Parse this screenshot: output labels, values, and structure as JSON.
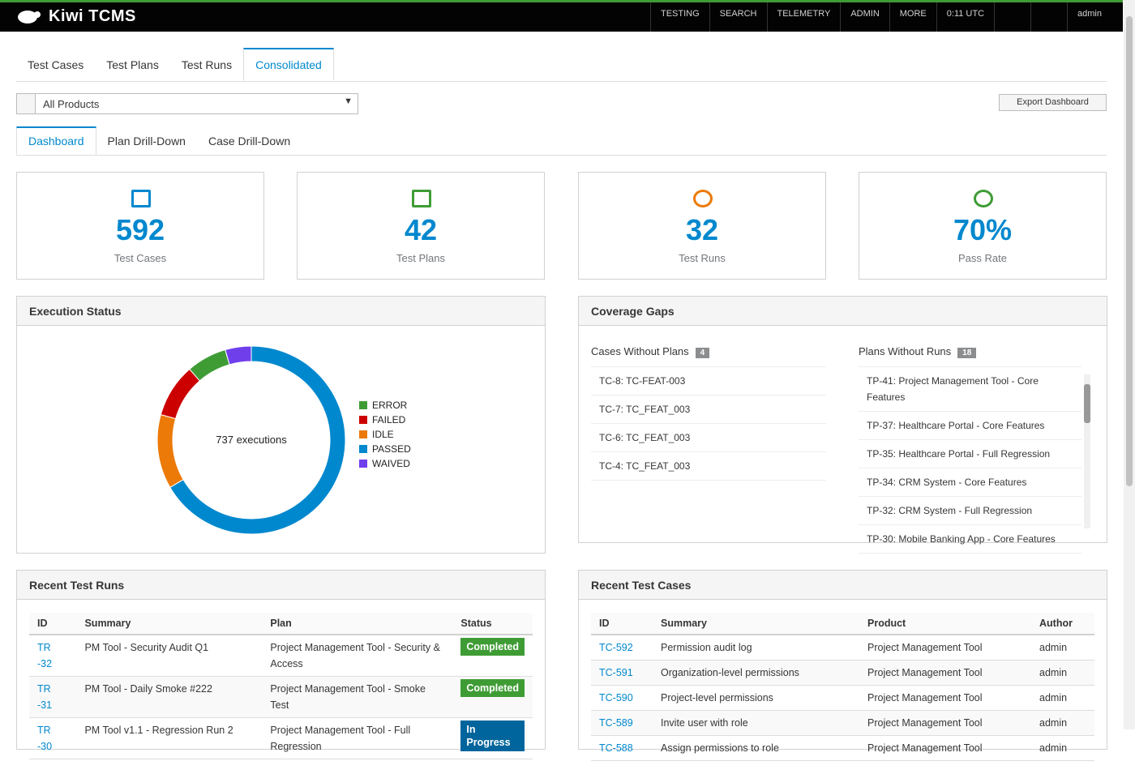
{
  "navbar": {
    "brand": "Kiwi TCMS",
    "menus": [
      "TESTING",
      "SEARCH",
      "TELEMETRY",
      "ADMIN",
      "MORE"
    ],
    "clock": "0:11 UTC",
    "user": "admin"
  },
  "tabs": [
    "Test Cases",
    "Test Plans",
    "Test Runs",
    "Consolidated"
  ],
  "filter": "All Products",
  "export": "Export Dashboard",
  "subtabs": [
    "Dashboard",
    "Plan Drill-Down",
    "Case Drill-Down"
  ],
  "stats": [
    {
      "value": "592",
      "label": "Test Cases",
      "color": "#0088ce"
    },
    {
      "value": "42",
      "label": "Test Plans",
      "color": "#3f9c35"
    },
    {
      "value": "32",
      "label": "Test Runs",
      "color": "#ec7a08"
    },
    {
      "value": "70%",
      "label": "Pass Rate",
      "color": "#3f9c35"
    }
  ],
  "chart_data": {
    "type": "pie",
    "title": "Execution Status",
    "center_label": "737 executions",
    "categories": [
      "ERROR",
      "FAILED",
      "IDLE",
      "PASSED",
      "WAIVED"
    ],
    "values": [
      51,
      68,
      94,
      491,
      33
    ],
    "colors": [
      "#3f9c35",
      "#cc0000",
      "#ec7a08",
      "#0088ce",
      "#703fec"
    ]
  },
  "coverage": {
    "title": "Coverage Gaps",
    "cases": {
      "title": "Cases Without Plans",
      "count": "4",
      "items": [
        "TC-8: TC-FEAT-003",
        "TC-7: TC_FEAT_003",
        "TC-6: TC_FEAT_003",
        "TC-4: TC_FEAT_003"
      ]
    },
    "plans": {
      "title": "Plans Without Runs",
      "count": "18",
      "items": [
        "TP-41: Project Management Tool - Core Features",
        "TP-37: Healthcare Portal - Core Features",
        "TP-35: Healthcare Portal - Full Regression",
        "TP-34: CRM System - Core Features",
        "TP-32: CRM System - Full Regression",
        "TP-30: Mobile Banking App - Core Features"
      ]
    }
  },
  "recent_runs": {
    "title": "Recent Test Runs",
    "columns": [
      "ID",
      "Summary",
      "Plan",
      "Status"
    ],
    "rows": [
      {
        "id": "TR-32",
        "summary": "PM Tool - Security Audit Q1",
        "plan": "Project Management Tool - Security & Access",
        "status": "Completed",
        "status_color": "#3f9c35"
      },
      {
        "id": "TR-31",
        "summary": "PM Tool - Daily Smoke #222",
        "plan": "Project Management Tool - Smoke Test",
        "status": "Completed",
        "status_color": "#3f9c35"
      },
      {
        "id": "TR-30",
        "summary": "PM Tool v1.1 - Regression Run 2",
        "plan": "Project Management Tool - Full Regression",
        "status": "In Progress",
        "status_color": "#00659c"
      }
    ]
  },
  "recent_cases": {
    "title": "Recent Test Cases",
    "columns": [
      "ID",
      "Summary",
      "Product",
      "Author"
    ],
    "rows": [
      [
        "TC-592",
        "Permission audit log",
        "Project Management Tool",
        "admin"
      ],
      [
        "TC-591",
        "Organization-level permissions",
        "Project Management Tool",
        "admin"
      ],
      [
        "TC-590",
        "Project-level permissions",
        "Project Management Tool",
        "admin"
      ],
      [
        "TC-589",
        "Invite user with role",
        "Project Management Tool",
        "admin"
      ],
      [
        "TC-588",
        "Assign permissions to role",
        "Project Management Tool",
        "admin"
      ]
    ]
  }
}
